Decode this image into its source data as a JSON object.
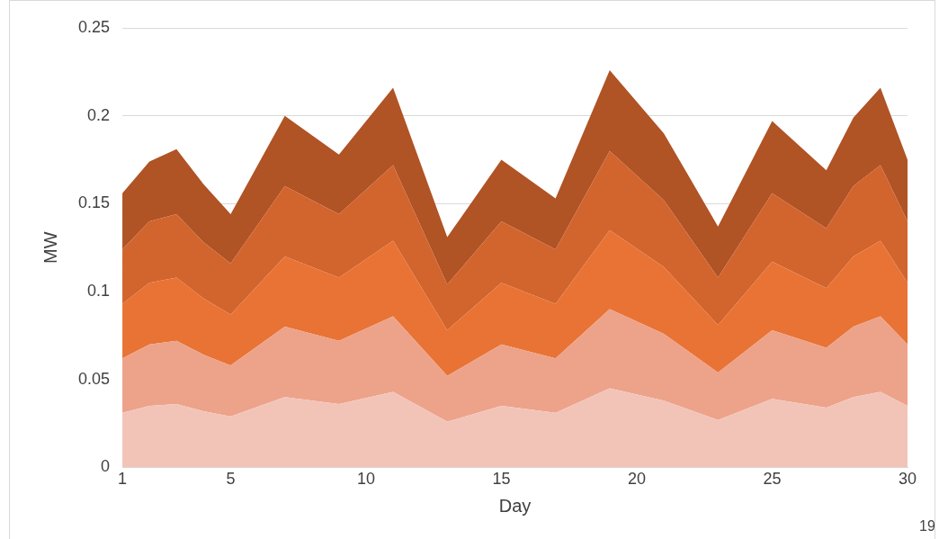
{
  "chart_data": {
    "type": "area",
    "stacked": true,
    "xlabel": "Day",
    "ylabel": "MW",
    "x": [
      1,
      2,
      3,
      4,
      5,
      7,
      9,
      11,
      13,
      15,
      17,
      19,
      21,
      23,
      25,
      27,
      28,
      29,
      30
    ],
    "series": [
      {
        "color": "#f2c4b8",
        "values": [
          0.031,
          0.035,
          0.036,
          0.032,
          0.029,
          0.04,
          0.036,
          0.043,
          0.026,
          0.035,
          0.031,
          0.045,
          0.038,
          0.027,
          0.039,
          0.034,
          0.04,
          0.043,
          0.035
        ]
      },
      {
        "color": "#eda28a",
        "values": [
          0.031,
          0.035,
          0.036,
          0.032,
          0.029,
          0.04,
          0.036,
          0.043,
          0.026,
          0.035,
          0.031,
          0.045,
          0.038,
          0.027,
          0.039,
          0.034,
          0.04,
          0.043,
          0.035
        ]
      },
      {
        "color": "#e87334",
        "values": [
          0.031,
          0.035,
          0.036,
          0.032,
          0.029,
          0.04,
          0.036,
          0.043,
          0.026,
          0.035,
          0.031,
          0.045,
          0.038,
          0.027,
          0.039,
          0.034,
          0.04,
          0.043,
          0.035
        ]
      },
      {
        "color": "#d2642e",
        "values": [
          0.031,
          0.035,
          0.036,
          0.032,
          0.029,
          0.04,
          0.036,
          0.043,
          0.026,
          0.035,
          0.031,
          0.045,
          0.038,
          0.027,
          0.039,
          0.034,
          0.04,
          0.043,
          0.035
        ]
      },
      {
        "color": "#b05325",
        "values": [
          0.032,
          0.034,
          0.037,
          0.033,
          0.028,
          0.04,
          0.034,
          0.044,
          0.027,
          0.035,
          0.029,
          0.046,
          0.038,
          0.029,
          0.041,
          0.033,
          0.039,
          0.044,
          0.035
        ]
      }
    ],
    "xlim": [
      1,
      30
    ],
    "xticks": [
      1,
      5,
      10,
      15,
      20,
      25,
      30
    ],
    "ylim": [
      0,
      0.25
    ],
    "yticks": [
      0,
      0.05,
      0.1,
      0.15,
      0.2,
      0.25
    ],
    "grid": "y",
    "legend": false,
    "marker": "none",
    "annotations": [
      "19"
    ]
  }
}
